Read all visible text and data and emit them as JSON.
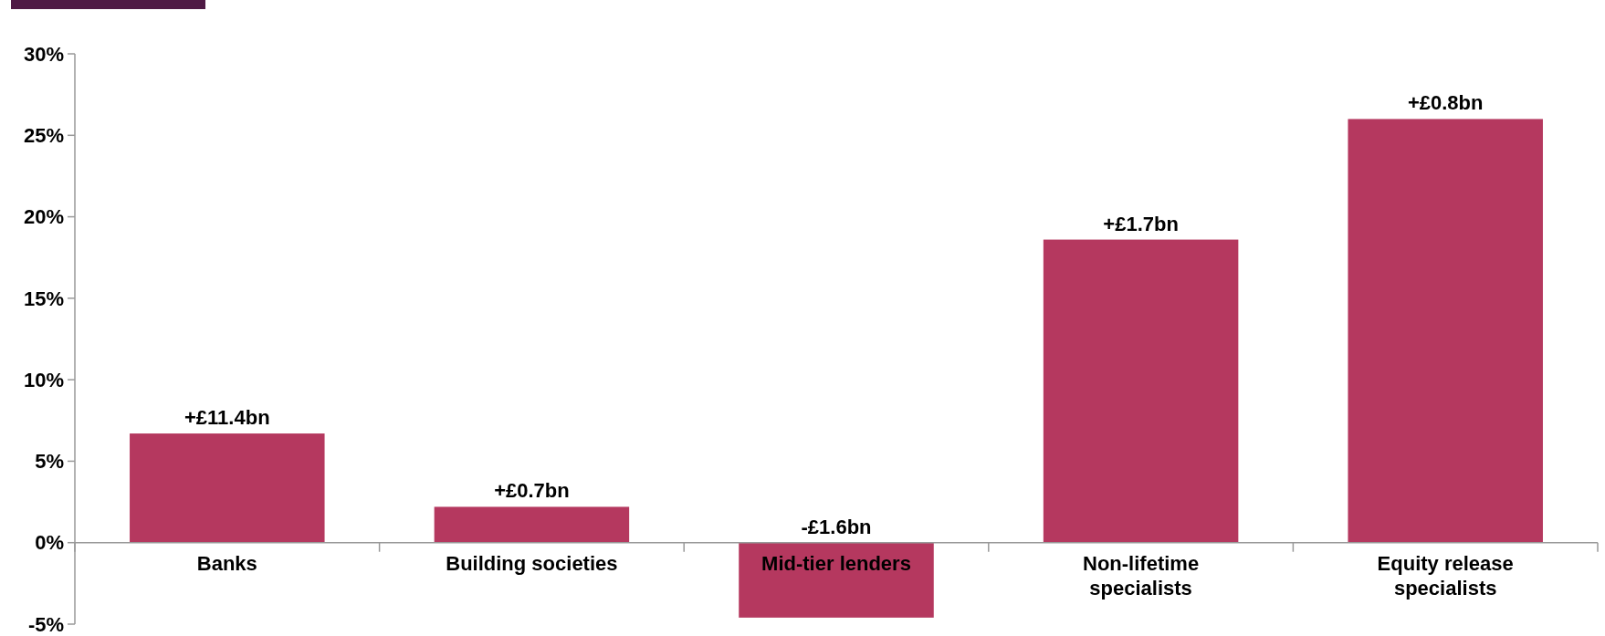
{
  "chart_data": {
    "type": "bar",
    "categories": [
      "Banks",
      "Building societies",
      "Mid-tier lenders",
      "Non-lifetime specialists",
      "Equity release specialists"
    ],
    "values": [
      6.7,
      2.2,
      -4.6,
      18.6,
      26.0
    ],
    "annotations": [
      {
        "text": "+£11.4bn",
        "x": "Banks",
        "y": 6.7
      },
      {
        "text": "+£0.7bn",
        "x": "Building societies",
        "y": 2.2
      },
      {
        "text": "-£1.6bn",
        "x": "Mid-tier lenders",
        "y": 0
      },
      {
        "text": "+£1.7bn",
        "x": "Non-lifetime specialists",
        "y": 18.6
      },
      {
        "text": "+£0.8bn",
        "x": "Equity release specialists",
        "y": 26.0
      }
    ],
    "color": "#b5385f",
    "ylim": [
      -5,
      30
    ],
    "yticks": [
      {
        "value": -5,
        "label": "-5%"
      },
      {
        "value": 0,
        "label": "0%"
      },
      {
        "value": 5,
        "label": "5%"
      },
      {
        "value": 10,
        "label": "10%"
      },
      {
        "value": 15,
        "label": "15%"
      },
      {
        "value": 20,
        "label": "20%"
      },
      {
        "value": 25,
        "label": "25%"
      },
      {
        "value": 30,
        "label": "30%"
      }
    ],
    "grid": false
  }
}
